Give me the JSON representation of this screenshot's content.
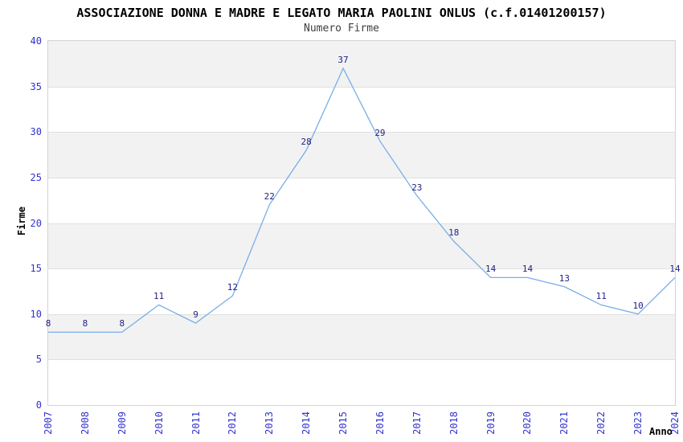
{
  "title": "ASSOCIAZIONE DONNA E MADRE E LEGATO MARIA PAOLINI ONLUS (c.f.01401200157)",
  "subtitle": "Numero Firme",
  "colors": {
    "line": "#79ade8",
    "tick_label": "#3333cc",
    "data_label": "#222288",
    "band_gray": "#f2f2f2",
    "band_white": "#ffffff",
    "plot_border": "#d3d3d3",
    "gridline": "#e0e0e0",
    "title_color": "#000000"
  },
  "chart_data": {
    "type": "line",
    "title": "ASSOCIAZIONE DONNA E MADRE E LEGATO MARIA PAOLINI ONLUS (c.f.01401200157)",
    "subtitle": "Numero Firme",
    "categories": [
      "2007",
      "2008",
      "2009",
      "2010",
      "2011",
      "2012",
      "2013",
      "2014",
      "2015",
      "2016",
      "2017",
      "2018",
      "2019",
      "2020",
      "2021",
      "2022",
      "2023",
      "2024"
    ],
    "values": [
      8,
      8,
      8,
      11,
      9,
      12,
      22,
      28,
      37,
      29,
      23,
      18,
      14,
      14,
      13,
      11,
      10,
      14
    ],
    "xlabel": "Anno",
    "ylabel": "Firme",
    "ylim": [
      0,
      40
    ],
    "yticks": [
      0,
      5,
      10,
      15,
      20,
      25,
      30,
      35,
      40
    ],
    "grid": "horizontal-bands-alternating",
    "legend": "none",
    "data_labels": "shown-above-points",
    "x_tick_rotation": "vertical"
  }
}
